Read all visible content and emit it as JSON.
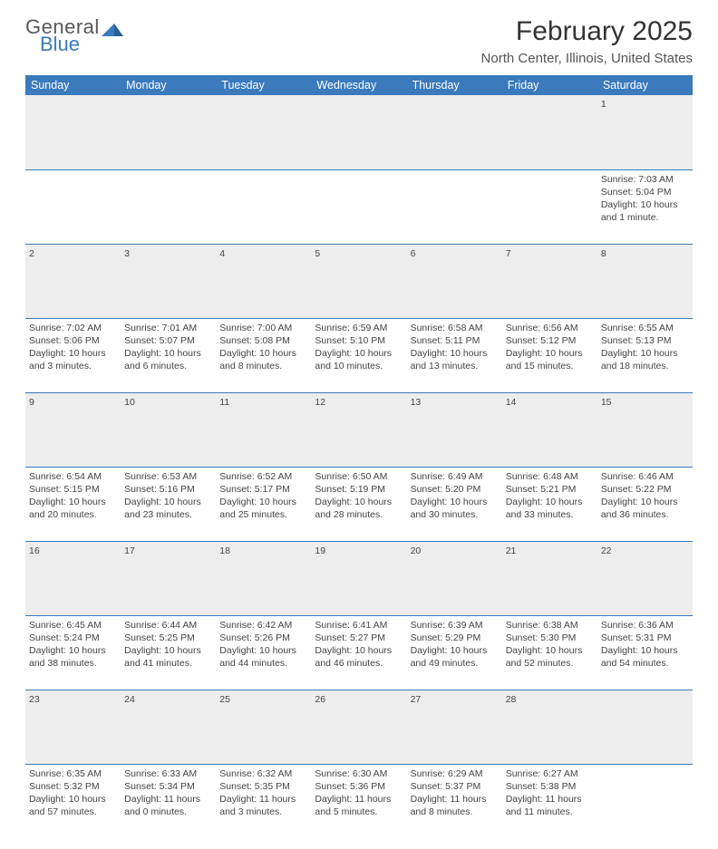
{
  "brand": {
    "word1": "General",
    "word2": "Blue",
    "word1_color": "#585858",
    "word2_color": "#3a7abd"
  },
  "title": "February 2025",
  "subtitle": "North Center, Illinois, United States",
  "colors": {
    "header_bg": "#3a7abd",
    "header_text": "#ffffff",
    "daynum_bg": "#ededed",
    "divider": "#3a7abd",
    "body_text": "#444444",
    "title_text": "#333333",
    "subtitle_text": "#555555",
    "page_bg": "#ffffff"
  },
  "typography": {
    "title_fontsize": 30,
    "subtitle_fontsize": 15,
    "dayname_fontsize": 12.5,
    "daynum_fontsize": 12,
    "cell_fontsize": 10.5,
    "font_family": "Arial"
  },
  "day_names": [
    "Sunday",
    "Monday",
    "Tuesday",
    "Wednesday",
    "Thursday",
    "Friday",
    "Saturday"
  ],
  "weeks": [
    {
      "nums": [
        "",
        "",
        "",
        "",
        "",
        "",
        "1"
      ],
      "cells": [
        null,
        null,
        null,
        null,
        null,
        null,
        {
          "sunrise": "Sunrise: 7:03 AM",
          "sunset": "Sunset: 5:04 PM",
          "daylight": "Daylight: 10 hours and 1 minute."
        }
      ]
    },
    {
      "nums": [
        "2",
        "3",
        "4",
        "5",
        "6",
        "7",
        "8"
      ],
      "cells": [
        {
          "sunrise": "Sunrise: 7:02 AM",
          "sunset": "Sunset: 5:06 PM",
          "daylight": "Daylight: 10 hours and 3 minutes."
        },
        {
          "sunrise": "Sunrise: 7:01 AM",
          "sunset": "Sunset: 5:07 PM",
          "daylight": "Daylight: 10 hours and 6 minutes."
        },
        {
          "sunrise": "Sunrise: 7:00 AM",
          "sunset": "Sunset: 5:08 PM",
          "daylight": "Daylight: 10 hours and 8 minutes."
        },
        {
          "sunrise": "Sunrise: 6:59 AM",
          "sunset": "Sunset: 5:10 PM",
          "daylight": "Daylight: 10 hours and 10 minutes."
        },
        {
          "sunrise": "Sunrise: 6:58 AM",
          "sunset": "Sunset: 5:11 PM",
          "daylight": "Daylight: 10 hours and 13 minutes."
        },
        {
          "sunrise": "Sunrise: 6:56 AM",
          "sunset": "Sunset: 5:12 PM",
          "daylight": "Daylight: 10 hours and 15 minutes."
        },
        {
          "sunrise": "Sunrise: 6:55 AM",
          "sunset": "Sunset: 5:13 PM",
          "daylight": "Daylight: 10 hours and 18 minutes."
        }
      ]
    },
    {
      "nums": [
        "9",
        "10",
        "11",
        "12",
        "13",
        "14",
        "15"
      ],
      "cells": [
        {
          "sunrise": "Sunrise: 6:54 AM",
          "sunset": "Sunset: 5:15 PM",
          "daylight": "Daylight: 10 hours and 20 minutes."
        },
        {
          "sunrise": "Sunrise: 6:53 AM",
          "sunset": "Sunset: 5:16 PM",
          "daylight": "Daylight: 10 hours and 23 minutes."
        },
        {
          "sunrise": "Sunrise: 6:52 AM",
          "sunset": "Sunset: 5:17 PM",
          "daylight": "Daylight: 10 hours and 25 minutes."
        },
        {
          "sunrise": "Sunrise: 6:50 AM",
          "sunset": "Sunset: 5:19 PM",
          "daylight": "Daylight: 10 hours and 28 minutes."
        },
        {
          "sunrise": "Sunrise: 6:49 AM",
          "sunset": "Sunset: 5:20 PM",
          "daylight": "Daylight: 10 hours and 30 minutes."
        },
        {
          "sunrise": "Sunrise: 6:48 AM",
          "sunset": "Sunset: 5:21 PM",
          "daylight": "Daylight: 10 hours and 33 minutes."
        },
        {
          "sunrise": "Sunrise: 6:46 AM",
          "sunset": "Sunset: 5:22 PM",
          "daylight": "Daylight: 10 hours and 36 minutes."
        }
      ]
    },
    {
      "nums": [
        "16",
        "17",
        "18",
        "19",
        "20",
        "21",
        "22"
      ],
      "cells": [
        {
          "sunrise": "Sunrise: 6:45 AM",
          "sunset": "Sunset: 5:24 PM",
          "daylight": "Daylight: 10 hours and 38 minutes."
        },
        {
          "sunrise": "Sunrise: 6:44 AM",
          "sunset": "Sunset: 5:25 PM",
          "daylight": "Daylight: 10 hours and 41 minutes."
        },
        {
          "sunrise": "Sunrise: 6:42 AM",
          "sunset": "Sunset: 5:26 PM",
          "daylight": "Daylight: 10 hours and 44 minutes."
        },
        {
          "sunrise": "Sunrise: 6:41 AM",
          "sunset": "Sunset: 5:27 PM",
          "daylight": "Daylight: 10 hours and 46 minutes."
        },
        {
          "sunrise": "Sunrise: 6:39 AM",
          "sunset": "Sunset: 5:29 PM",
          "daylight": "Daylight: 10 hours and 49 minutes."
        },
        {
          "sunrise": "Sunrise: 6:38 AM",
          "sunset": "Sunset: 5:30 PM",
          "daylight": "Daylight: 10 hours and 52 minutes."
        },
        {
          "sunrise": "Sunrise: 6:36 AM",
          "sunset": "Sunset: 5:31 PM",
          "daylight": "Daylight: 10 hours and 54 minutes."
        }
      ]
    },
    {
      "nums": [
        "23",
        "24",
        "25",
        "26",
        "27",
        "28",
        ""
      ],
      "cells": [
        {
          "sunrise": "Sunrise: 6:35 AM",
          "sunset": "Sunset: 5:32 PM",
          "daylight": "Daylight: 10 hours and 57 minutes."
        },
        {
          "sunrise": "Sunrise: 6:33 AM",
          "sunset": "Sunset: 5:34 PM",
          "daylight": "Daylight: 11 hours and 0 minutes."
        },
        {
          "sunrise": "Sunrise: 6:32 AM",
          "sunset": "Sunset: 5:35 PM",
          "daylight": "Daylight: 11 hours and 3 minutes."
        },
        {
          "sunrise": "Sunrise: 6:30 AM",
          "sunset": "Sunset: 5:36 PM",
          "daylight": "Daylight: 11 hours and 5 minutes."
        },
        {
          "sunrise": "Sunrise: 6:29 AM",
          "sunset": "Sunset: 5:37 PM",
          "daylight": "Daylight: 11 hours and 8 minutes."
        },
        {
          "sunrise": "Sunrise: 6:27 AM",
          "sunset": "Sunset: 5:38 PM",
          "daylight": "Daylight: 11 hours and 11 minutes."
        },
        null
      ]
    }
  ]
}
